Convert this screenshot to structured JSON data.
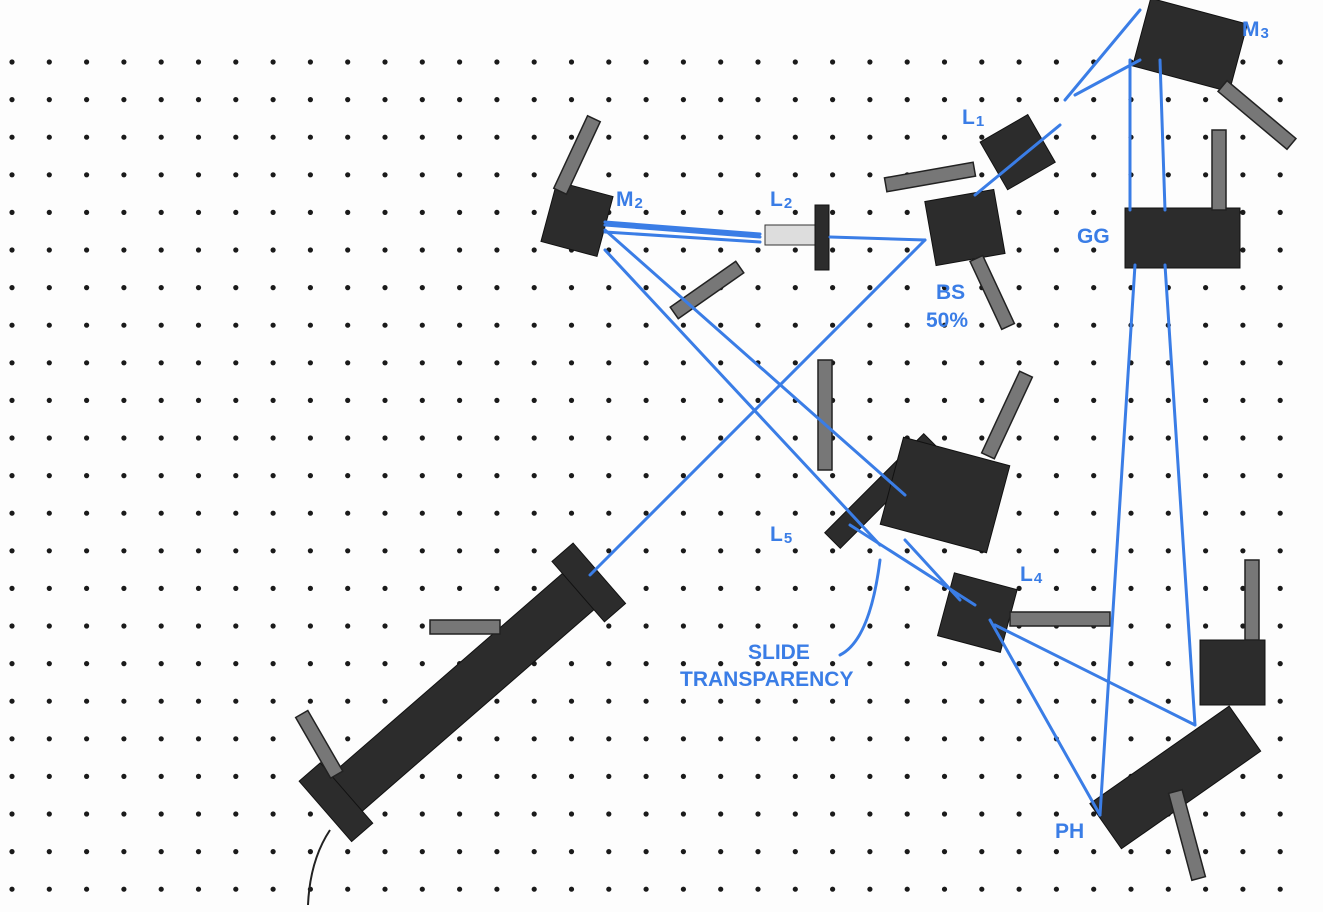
{
  "labels": [
    {
      "main": "M",
      "sub": "3"
    },
    {
      "main": "L",
      "sub": "1"
    },
    {
      "main": "M",
      "sub": "2"
    },
    {
      "main": "L",
      "sub": "2"
    },
    {
      "main": "GG"
    },
    {
      "main": "BS"
    },
    {
      "main": "50%"
    },
    {
      "main": "L",
      "sub": "5"
    },
    {
      "main": "L",
      "sub": "4"
    },
    {
      "main": "SLIDE"
    },
    {
      "main": "TRANSPARENCY"
    },
    {
      "main": "PH"
    }
  ]
}
